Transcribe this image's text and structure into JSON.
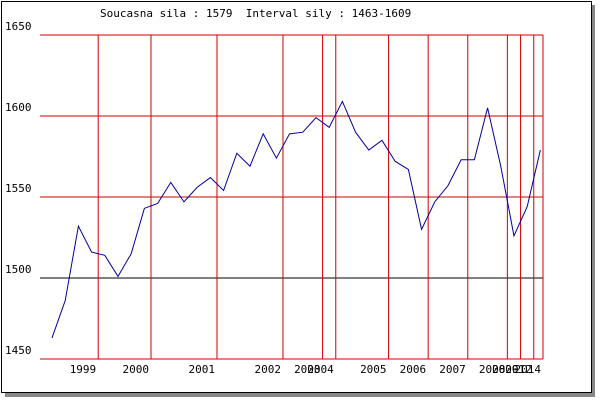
{
  "chart_data": {
    "type": "line",
    "title": "Soucasna sila : 1579  Interval sily : 1463-1609",
    "x": [
      0,
      1,
      2,
      3,
      4,
      5,
      6,
      7,
      8,
      9,
      10,
      11,
      12,
      13,
      14,
      15,
      16,
      17,
      18,
      19,
      20,
      21,
      22,
      23,
      24,
      25,
      26,
      27,
      28,
      29,
      30,
      31,
      32,
      33,
      34,
      35,
      36,
      37
    ],
    "values": [
      1463,
      1486,
      1532,
      1516,
      1514,
      1501,
      1515,
      1543,
      1546,
      1559,
      1547,
      1556,
      1562,
      1554,
      1577,
      1569,
      1589,
      1574,
      1589,
      1590,
      1599,
      1593,
      1609,
      1590,
      1579,
      1585,
      1572,
      1567,
      1530,
      1547,
      1557,
      1573,
      1573,
      1605,
      1569,
      1526,
      1544,
      1579
    ],
    "color": "#0000a0",
    "xlim": [
      0,
      37.2
    ],
    "xticks": [
      {
        "value": 3.5,
        "label": "1999"
      },
      {
        "value": 7.5,
        "label": "2000"
      },
      {
        "value": 12.5,
        "label": "2001"
      },
      {
        "value": 17.5,
        "label": "2002"
      },
      {
        "value": 20.5,
        "label": "2003"
      },
      {
        "value": 21.5,
        "label": "2004"
      },
      {
        "value": 25.5,
        "label": "2005"
      },
      {
        "value": 28.5,
        "label": "2006"
      },
      {
        "value": 31.5,
        "label": "2007"
      },
      {
        "value": 34.5,
        "label": "2008"
      },
      {
        "value": 35.5,
        "label": "2009"
      },
      {
        "value": 36.5,
        "label": "2012"
      },
      {
        "value": 37.2,
        "label": "2014"
      }
    ],
    "ylim": [
      1450,
      1650
    ],
    "yticks": [
      1450,
      1500,
      1550,
      1600,
      1650
    ],
    "grid": true,
    "grid_color": "#d00000",
    "ygrid_colors": [
      "#d00000",
      "#000000",
      "#d00000",
      "#d00000",
      "#d00000"
    ]
  }
}
